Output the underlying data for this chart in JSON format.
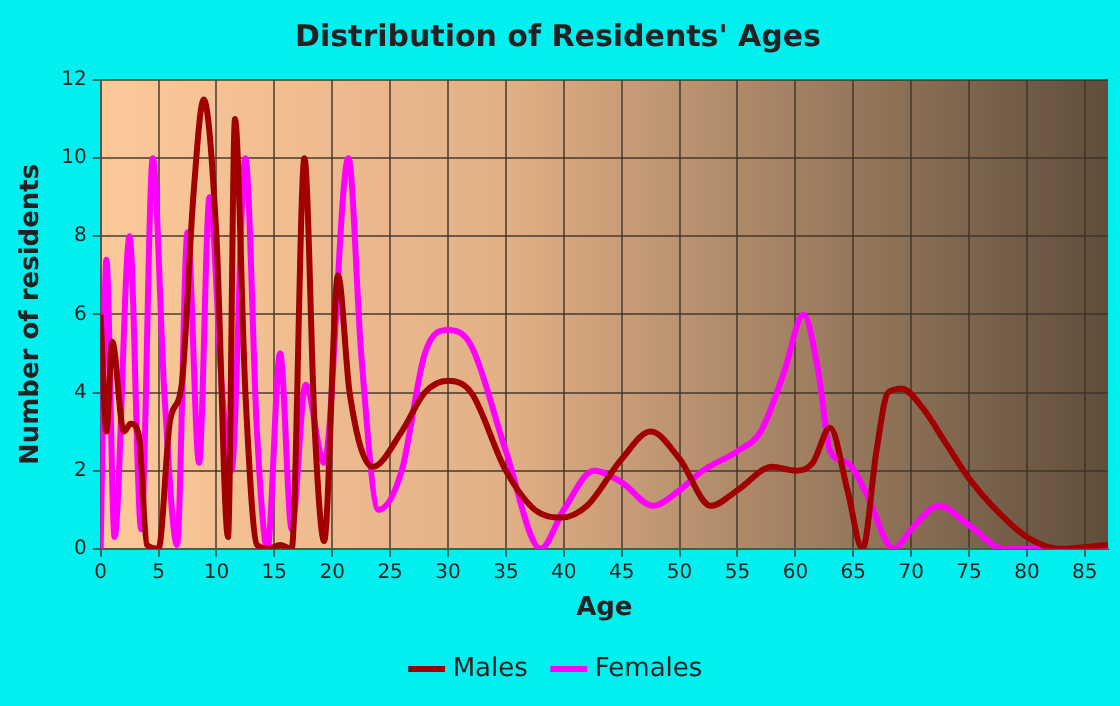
{
  "chart_data": {
    "type": "line",
    "title": "Distribution of Residents' Ages",
    "xlabel": "Age",
    "ylabel": "Number of residents",
    "xlim": [
      0,
      87
    ],
    "xticks": [
      0,
      5,
      10,
      15,
      20,
      25,
      30,
      35,
      40,
      45,
      50,
      55,
      60,
      65,
      70,
      75,
      80,
      85
    ],
    "ylim": [
      0,
      12
    ],
    "yticks": [
      0,
      2,
      4,
      6,
      8,
      10,
      12
    ],
    "grid": true,
    "legend": "bottom",
    "marker": "none",
    "line_style": "solid",
    "series": [
      {
        "name": "Males",
        "color": "#a00000",
        "x": [
          0,
          0.5,
          1,
          2,
          2.6,
          3.3,
          4,
          5,
          6,
          7,
          8,
          8.9,
          10,
          11,
          11.6,
          12.5,
          13.5,
          14.5,
          15.5,
          16.5,
          17.6,
          18.5,
          19.3,
          20.5,
          21.5,
          23.5,
          26,
          28,
          30,
          32,
          35,
          37.5,
          39.8,
          42,
          45,
          47.5,
          50,
          52.7,
          55,
          58,
          60,
          61.5,
          63,
          64.5,
          65.8,
          67,
          68,
          69.2,
          71,
          73,
          75,
          77,
          80,
          82.8,
          87
        ],
        "values": [
          6,
          3,
          5.3,
          3,
          3.2,
          2.9,
          0.1,
          0,
          3.3,
          4.2,
          9,
          11.5,
          8,
          0.3,
          11,
          4,
          0.1,
          0,
          0.1,
          0,
          10,
          3,
          0.2,
          7,
          4,
          2.1,
          3,
          4,
          4.3,
          4,
          2,
          1,
          0.8,
          1.1,
          2.3,
          3,
          2.3,
          1.1,
          1.5,
          2.1,
          2,
          2.2,
          3.1,
          1.5,
          0,
          2.5,
          4,
          4.1,
          3.6,
          2.7,
          1.8,
          1.1,
          0.3,
          0,
          0.1
        ]
      },
      {
        "name": "Females",
        "color": "#ff00ff",
        "x": [
          0,
          0.5,
          1.2,
          2.5,
          3.5,
          4.5,
          5.5,
          6.6,
          7.5,
          8.5,
          9.4,
          10.5,
          11.3,
          12.5,
          13.5,
          14.4,
          15.5,
          16.5,
          17.7,
          19.3,
          21.4,
          22.5,
          24,
          26,
          28,
          30,
          32,
          35,
          38,
          40,
          42.6,
          45,
          47.7,
          50,
          52,
          55,
          57,
          59,
          60.7,
          62,
          63,
          64.5,
          66,
          68.5,
          70,
          72.4,
          75,
          78,
          82,
          87
        ],
        "values": [
          0,
          7.4,
          0.3,
          8,
          0.5,
          10,
          4,
          0.1,
          8.1,
          2.2,
          9,
          4,
          2,
          10,
          3,
          0,
          5,
          0.5,
          4.2,
          2.2,
          10,
          5,
          1,
          2,
          5,
          5.6,
          5.2,
          2.5,
          0,
          1,
          2,
          1.7,
          1.1,
          1.5,
          2,
          2.5,
          3,
          4.5,
          6,
          4.5,
          2.5,
          2.2,
          1.5,
          0,
          0.5,
          1.1,
          0.6,
          0,
          0,
          0
        ]
      }
    ]
  }
}
